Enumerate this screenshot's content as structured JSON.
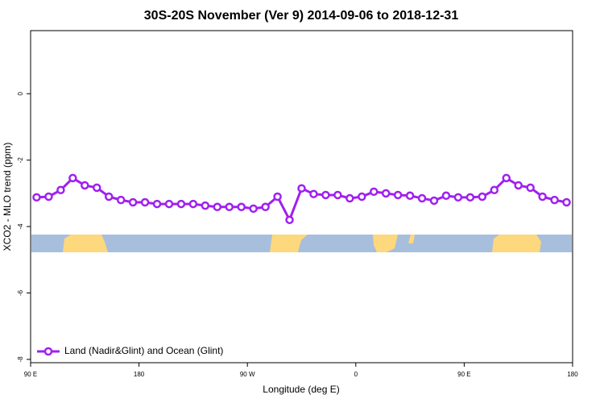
{
  "chart_data": {
    "type": "line",
    "title": "30S-20S November (Ver 9)   2014-09-06 to 2018-12-31",
    "xlabel": "Longitude (deg E)",
    "ylabel": "XCO2 - MLO trend (ppm)",
    "xlim": [
      90,
      540
    ],
    "ylim": [
      -8.1,
      1.9
    ],
    "xticks": [
      {
        "value": 90,
        "label": "90 E"
      },
      180,
      {
        "value": 270,
        "label": "90 W"
      },
      {
        "value": 360,
        "label": "0"
      },
      {
        "value": 450,
        "label": "90 E"
      },
      {
        "value": 540,
        "label": "180"
      }
    ],
    "yticks": [
      0,
      -2,
      -4,
      -6,
      -8
    ],
    "legend": "bottom-left",
    "series": [
      {
        "name": "Land (Nadir&Glint) and Ocean (Glint)",
        "color": "#a020f0",
        "x": [
          95,
          105,
          115,
          125,
          135,
          145,
          155,
          165,
          175,
          185,
          195,
          205,
          215,
          225,
          235,
          245,
          255,
          265,
          275,
          285,
          295,
          305,
          315,
          325,
          335,
          345,
          355,
          365,
          375,
          385,
          395,
          405,
          415,
          425,
          435,
          445,
          455,
          465,
          475,
          485,
          495,
          505,
          515,
          525,
          535
        ],
        "values": [
          -3.12,
          -3.1,
          -2.9,
          -2.54,
          -2.76,
          -2.83,
          -3.1,
          -3.2,
          -3.27,
          -3.27,
          -3.32,
          -3.32,
          -3.32,
          -3.32,
          -3.37,
          -3.41,
          -3.41,
          -3.41,
          -3.46,
          -3.41,
          -3.1,
          -3.8,
          -2.85,
          -3.02,
          -3.05,
          -3.05,
          -3.15,
          -3.1,
          -2.95,
          -3.0,
          -3.05,
          -3.07,
          -3.15,
          -3.22,
          -3.07,
          -3.12,
          -3.12,
          -3.1,
          -2.9,
          -2.54,
          -2.76,
          -2.83,
          -3.1,
          -3.2,
          -3.27
        ]
      }
    ]
  }
}
